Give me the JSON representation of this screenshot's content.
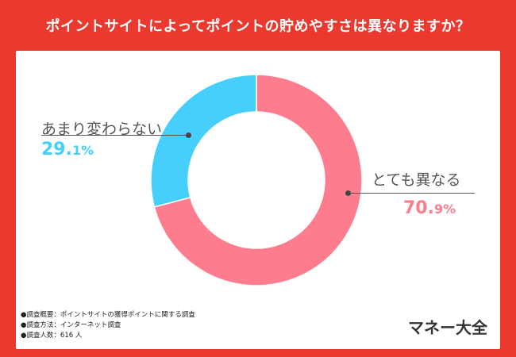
{
  "title": "ポイントサイトによってポイントの貯めやすさは異なりますか？",
  "chart_data": {
    "type": "pie",
    "categories": [
      "とても異なる",
      "あまり変わらない"
    ],
    "values": [
      70.9,
      29.1
    ],
    "labels": [
      {
        "name": "とても異なる",
        "pct_int": "70.",
        "pct_dec": "9%"
      },
      {
        "name": "あまり変わらない",
        "pct_int": "29.",
        "pct_dec": "1%"
      }
    ],
    "colors": [
      "#fd7d8e",
      "#46cffc"
    ],
    "donut": true
  },
  "notes": [
    "●調査概要：ポイントサイトの獲得ポイントに関する調査",
    "●調査方法：インターネット調査",
    "●調査人数：616 人"
  ],
  "brand": "マネー大全"
}
